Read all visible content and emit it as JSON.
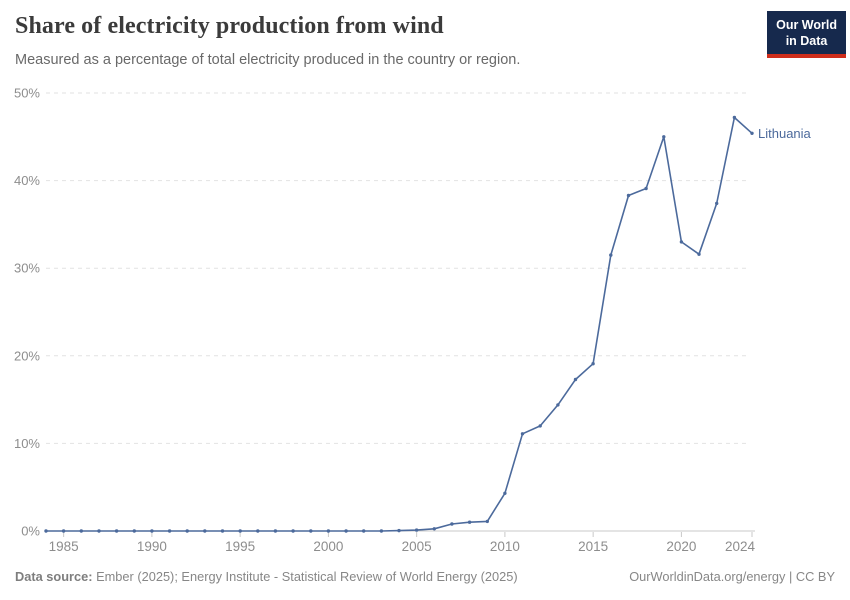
{
  "header": {
    "title": "Share of electricity production from wind",
    "subtitle": "Measured as a percentage of total electricity produced in the country or region.",
    "logo": {
      "line1": "Our World",
      "line2": "in Data",
      "bg_color": "#16294d",
      "bar_color": "#cf2d1b"
    }
  },
  "chart_data": {
    "type": "line",
    "title": "Share of electricity production from wind",
    "subtitle": "Measured as a percentage of total electricity produced in the country or region.",
    "xlabel": "",
    "ylabel": "",
    "xlim": [
      1984,
      2024
    ],
    "ylim": [
      0,
      50
    ],
    "x_ticks": [
      1985,
      1990,
      1995,
      2000,
      2005,
      2010,
      2015,
      2020,
      2024
    ],
    "y_ticks": [
      0,
      10,
      20,
      30,
      40,
      50
    ],
    "y_tick_suffix": "%",
    "grid": "horizontal dashed gridlines, solid baseline at 0%",
    "legend": "series label at end of line",
    "series": [
      {
        "name": "Lithuania",
        "color": "#4c6a9c",
        "points": [
          [
            1984,
            0
          ],
          [
            1985,
            0
          ],
          [
            1986,
            0
          ],
          [
            1987,
            0
          ],
          [
            1988,
            0
          ],
          [
            1989,
            0
          ],
          [
            1990,
            0
          ],
          [
            1991,
            0
          ],
          [
            1992,
            0
          ],
          [
            1993,
            0
          ],
          [
            1994,
            0
          ],
          [
            1995,
            0
          ],
          [
            1996,
            0
          ],
          [
            1997,
            0
          ],
          [
            1998,
            0
          ],
          [
            1999,
            0
          ],
          [
            2000,
            0
          ],
          [
            2001,
            0
          ],
          [
            2002,
            0
          ],
          [
            2003,
            0
          ],
          [
            2004,
            0.05
          ],
          [
            2005,
            0.1
          ],
          [
            2006,
            0.25
          ],
          [
            2007,
            0.8
          ],
          [
            2008,
            1.0
          ],
          [
            2009,
            1.1
          ],
          [
            2010,
            4.3
          ],
          [
            2011,
            11.1
          ],
          [
            2012,
            12.0
          ],
          [
            2013,
            14.4
          ],
          [
            2014,
            17.3
          ],
          [
            2015,
            19.1
          ],
          [
            2016,
            31.5
          ],
          [
            2017,
            38.3
          ],
          [
            2018,
            39.1
          ],
          [
            2019,
            45.0
          ],
          [
            2020,
            33.0
          ],
          [
            2021,
            31.6
          ],
          [
            2022,
            37.4
          ],
          [
            2023,
            47.2
          ],
          [
            2024,
            45.4
          ]
        ]
      }
    ]
  },
  "footer": {
    "datasource_label": "Data source:",
    "datasource_rest": " Ember (2025); Energy Institute - Statistical Review of World Energy (2025)",
    "link_text": "OurWorldinData.org/energy | CC BY"
  }
}
